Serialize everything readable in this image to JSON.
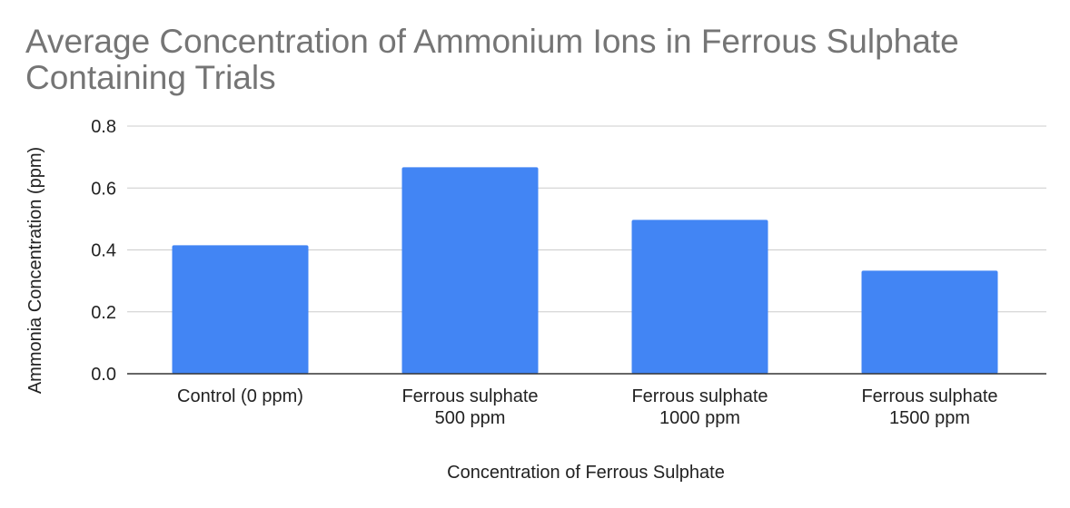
{
  "chart_data": {
    "type": "bar",
    "title": "Average Concentration of Ammonium Ions in Ferrous Sulphate Containing Trials",
    "xlabel": "Concentration of Ferrous Sulphate",
    "ylabel": "Ammonia Concentration (ppm)",
    "categories": [
      [
        "Control (0 ppm)"
      ],
      [
        "Ferrous sulphate",
        "500 ppm"
      ],
      [
        "Ferrous sulphate",
        "1000 ppm"
      ],
      [
        "Ferrous sulphate",
        "1500 ppm"
      ]
    ],
    "values": [
      0.415,
      0.667,
      0.497,
      0.333
    ],
    "ylim": [
      0,
      0.8
    ],
    "yticks": [
      "0.0",
      "0.2",
      "0.4",
      "0.6",
      "0.8"
    ],
    "grid": true,
    "legend": "none",
    "bar_color": "#4285f4",
    "grid_color": "#cccccc",
    "axis_color": "#333333"
  }
}
